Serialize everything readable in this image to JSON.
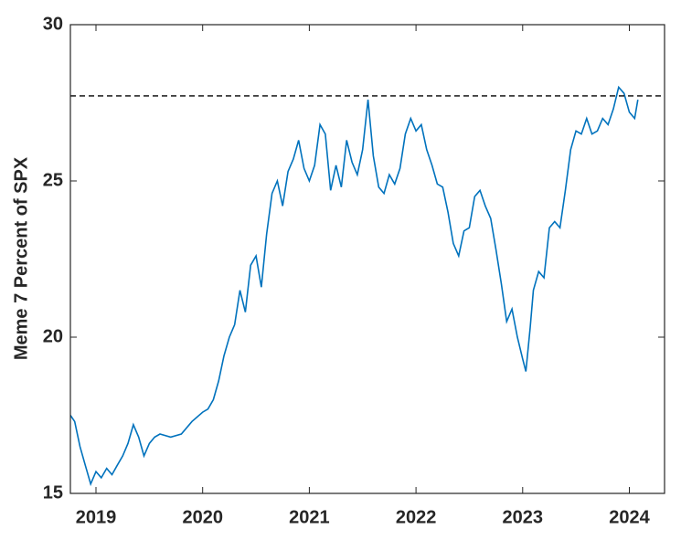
{
  "chart_data": {
    "type": "line",
    "ylabel": "Meme 7 Percent of SPX",
    "x": [
      2018.76,
      2018.8,
      2018.85,
      2018.9,
      2018.95,
      2019.0,
      2019.05,
      2019.1,
      2019.15,
      2019.2,
      2019.25,
      2019.3,
      2019.35,
      2019.4,
      2019.45,
      2019.5,
      2019.55,
      2019.6,
      2019.7,
      2019.8,
      2019.9,
      2020.0,
      2020.05,
      2020.1,
      2020.15,
      2020.2,
      2020.25,
      2020.3,
      2020.35,
      2020.4,
      2020.45,
      2020.5,
      2020.55,
      2020.6,
      2020.65,
      2020.7,
      2020.75,
      2020.8,
      2020.85,
      2020.9,
      2020.95,
      2021.0,
      2021.05,
      2021.1,
      2021.15,
      2021.2,
      2021.25,
      2021.3,
      2021.35,
      2021.4,
      2021.45,
      2021.5,
      2021.55,
      2021.6,
      2021.65,
      2021.7,
      2021.75,
      2021.8,
      2021.85,
      2021.9,
      2021.95,
      2022.0,
      2022.05,
      2022.1,
      2022.15,
      2022.2,
      2022.25,
      2022.3,
      2022.35,
      2022.4,
      2022.45,
      2022.5,
      2022.55,
      2022.6,
      2022.65,
      2022.7,
      2022.75,
      2022.8,
      2022.85,
      2022.9,
      2022.95,
      2023.0,
      2023.03,
      2023.07,
      2023.1,
      2023.15,
      2023.2,
      2023.25,
      2023.3,
      2023.35,
      2023.4,
      2023.45,
      2023.5,
      2023.55,
      2023.6,
      2023.65,
      2023.7,
      2023.75,
      2023.8,
      2023.85,
      2023.9,
      2023.95,
      2024.0,
      2024.05,
      2024.08
    ],
    "values": [
      17.5,
      17.3,
      16.5,
      15.9,
      15.3,
      15.7,
      15.5,
      15.8,
      15.6,
      15.9,
      16.2,
      16.6,
      17.2,
      16.8,
      16.2,
      16.6,
      16.8,
      16.9,
      16.8,
      16.9,
      17.3,
      17.6,
      17.7,
      18.0,
      18.6,
      19.4,
      20.0,
      20.4,
      21.5,
      20.8,
      22.3,
      22.6,
      21.6,
      23.3,
      24.6,
      25.0,
      24.2,
      25.3,
      25.7,
      26.3,
      25.4,
      25.0,
      25.5,
      26.8,
      26.5,
      24.7,
      25.5,
      24.8,
      26.3,
      25.6,
      25.2,
      26.0,
      27.6,
      25.8,
      24.8,
      24.6,
      25.2,
      24.9,
      25.4,
      26.5,
      27.0,
      26.6,
      26.8,
      26.0,
      25.5,
      24.9,
      24.8,
      24.0,
      23.0,
      22.6,
      23.4,
      23.5,
      24.5,
      24.7,
      24.2,
      23.8,
      22.8,
      21.7,
      20.5,
      20.9,
      20.0,
      19.3,
      18.9,
      20.3,
      21.5,
      22.1,
      21.9,
      23.5,
      23.7,
      23.5,
      24.7,
      26.0,
      26.6,
      26.5,
      27.0,
      26.5,
      26.6,
      27.0,
      26.8,
      27.3,
      28.0,
      27.8,
      27.2,
      27.0,
      27.6
    ],
    "color": "#0072bd",
    "reference_line": 27.72,
    "xlim": [
      2018.76,
      2024.33
    ],
    "xticks": [
      2019,
      2020,
      2021,
      2022,
      2023,
      2024
    ],
    "ylim": [
      15,
      30
    ],
    "yticks": [
      15,
      20,
      25,
      30
    ]
  }
}
